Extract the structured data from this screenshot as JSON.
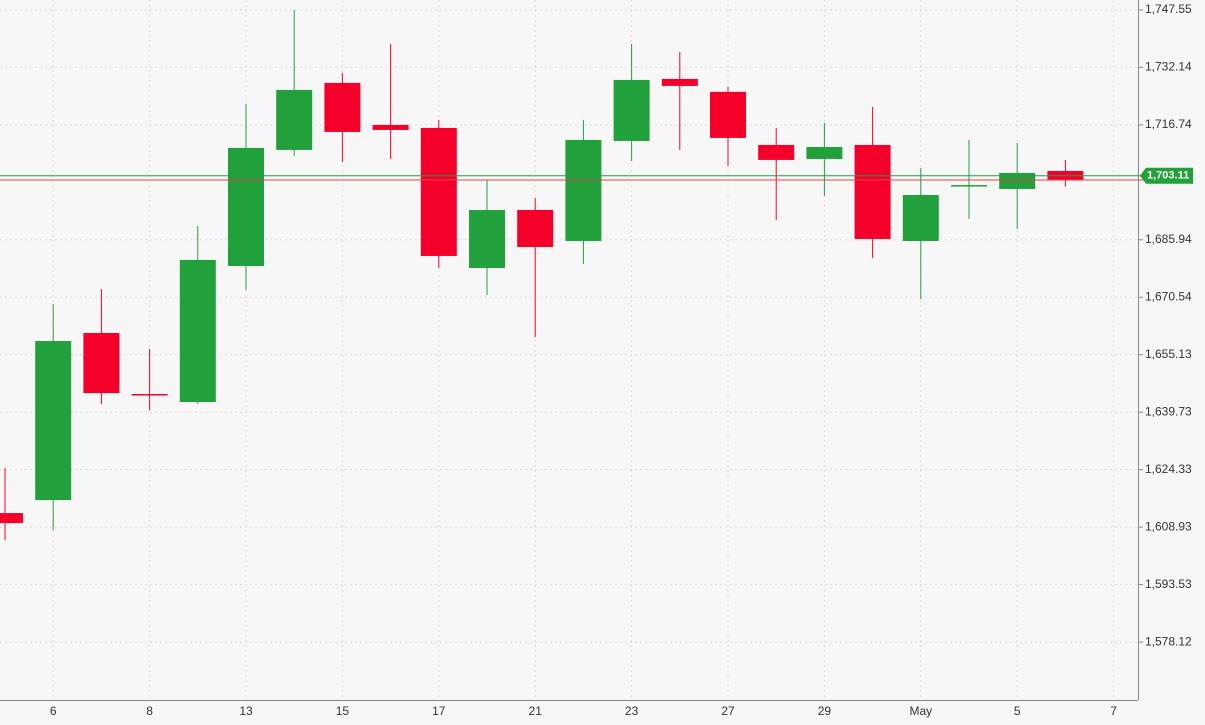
{
  "chart_data": {
    "type": "candlestick",
    "categories": [
      null,
      "6",
      null,
      "8",
      null,
      "13",
      null,
      "15",
      null,
      "17",
      null,
      "21",
      null,
      "23",
      null,
      "27",
      null,
      "29",
      null,
      "May",
      null,
      "5",
      null,
      "7"
    ],
    "open": [
      1612.7,
      1616.18,
      1660.96,
      1644.6,
      1642.46,
      1678.92,
      1710.02,
      1727.98,
      1716.72,
      1715.91,
      1678.38,
      1693.93,
      1685.62,
      1712.43,
      1729.05,
      1725.57,
      1711.36,
      1707.6,
      1711.36,
      1685.62,
      1700.2,
      1699.56,
      1704.39,
      null
    ],
    "high": [
      1624.76,
      1668.73,
      1672.75,
      1656.67,
      1689.64,
      1722.35,
      1747.55,
      1730.66,
      1738.43,
      1718.06,
      1701.97,
      1697.15,
      1718.06,
      1738.43,
      1736.29,
      1726.91,
      1715.91,
      1717.26,
      1721.55,
      1705.19,
      1712.7,
      1711.89,
      1707.34,
      null
    ],
    "low": [
      1605.46,
      1608.14,
      1641.92,
      1640.31,
      1641.92,
      1672.48,
      1708.41,
      1706.8,
      1707.6,
      1678.38,
      1671.14,
      1659.88,
      1679.45,
      1707.07,
      1710.02,
      1705.73,
      1691.25,
      1697.68,
      1681.06,
      1670.07,
      1691.52,
      1688.84,
      1700.23,
      null
    ],
    "close": [
      1610.02,
      1658.81,
      1644.87,
      1644.33,
      1680.53,
      1710.55,
      1726.1,
      1714.84,
      1715.38,
      1681.6,
      1693.93,
      1684.01,
      1712.7,
      1728.78,
      1727.17,
      1713.23,
      1707.34,
      1710.82,
      1686.16,
      1697.95,
      1700.6,
      1703.85,
      1701.97,
      null
    ],
    "up_color": "#21a03c",
    "down_color": "#f5002b",
    "ylim": [
      1562.6,
      1750.2
    ],
    "yticks": [
      {
        "value": 1578.12,
        "label": "1,578.12"
      },
      {
        "value": 1593.53,
        "label": "1,593.53"
      },
      {
        "value": 1608.93,
        "label": "1,608.93"
      },
      {
        "value": 1624.33,
        "label": "1,624.33"
      },
      {
        "value": 1639.73,
        "label": "1,639.73"
      },
      {
        "value": 1655.13,
        "label": "1,655.13"
      },
      {
        "value": 1670.54,
        "label": "1,670.54"
      },
      {
        "value": 1685.94,
        "label": "1,685.94"
      },
      {
        "value": 1716.74,
        "label": "1,716.74"
      },
      {
        "value": 1732.14,
        "label": "1,732.14"
      },
      {
        "value": 1747.55,
        "label": "1,747.55"
      }
    ],
    "price_lines": [
      {
        "value": 1701.97,
        "color": "#e8414f"
      },
      {
        "value": 1703.11,
        "label": "1,703.11",
        "color": "#21a03c"
      }
    ],
    "grid": true
  }
}
